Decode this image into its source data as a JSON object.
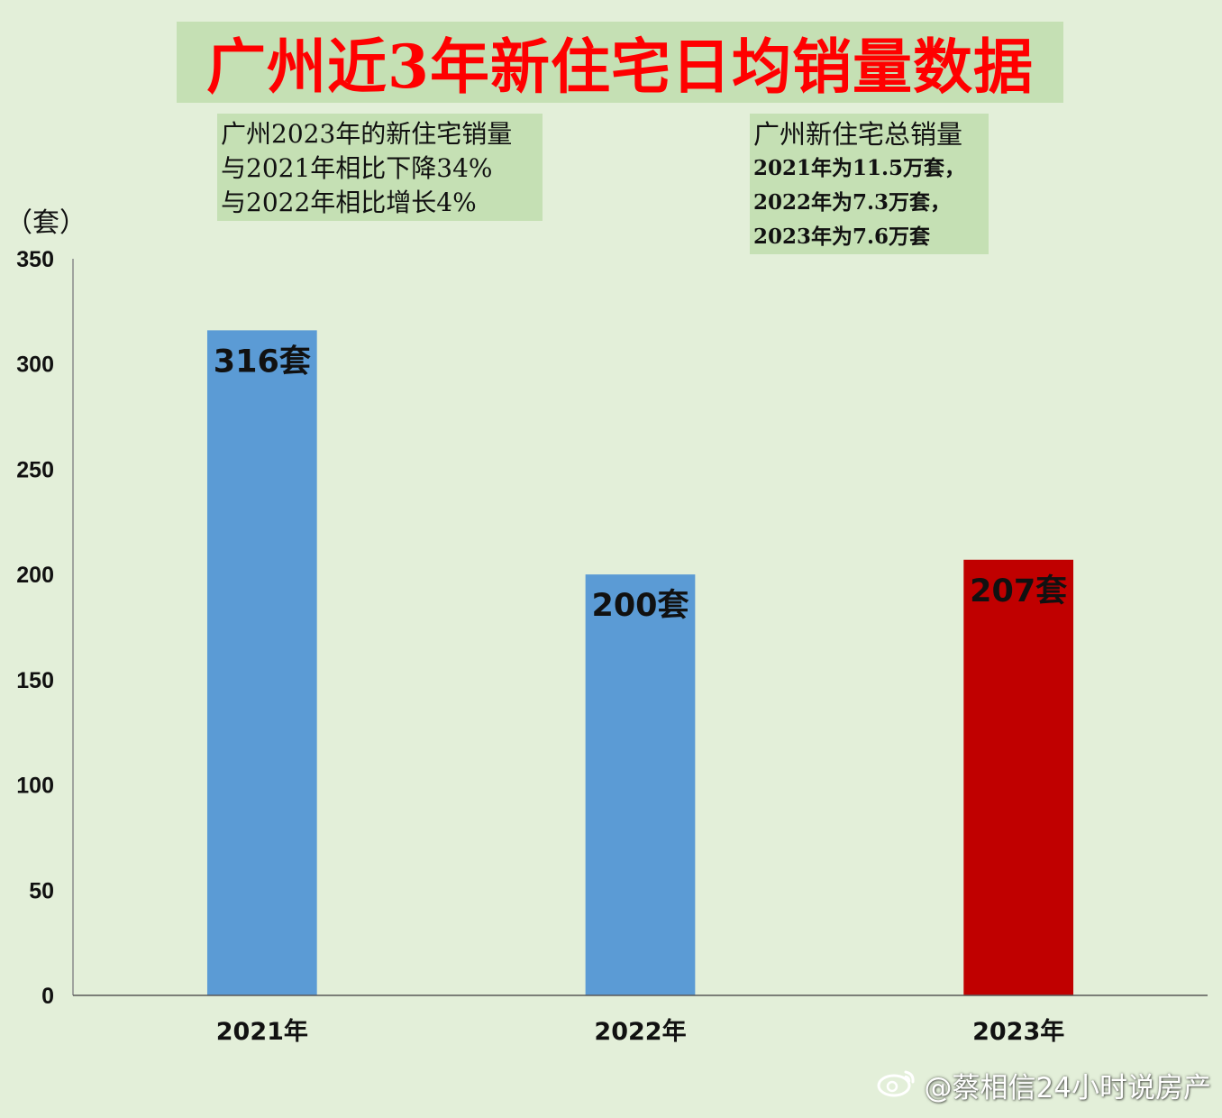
{
  "chart_data": {
    "type": "bar",
    "title": "广州近3年新住宅日均销量数据",
    "ylabel": "（套）",
    "ylim": [
      0,
      350
    ],
    "yticks": [
      0,
      50,
      100,
      150,
      200,
      250,
      300,
      350
    ],
    "categories": [
      "2021年",
      "2022年",
      "2023年"
    ],
    "values": [
      316,
      200,
      207
    ],
    "data_labels": [
      "316套",
      "200套",
      "207套"
    ],
    "colors": [
      "#5b9bd5",
      "#5b9bd5",
      "#c00000"
    ],
    "grid": false,
    "annotations": [
      [
        "广州2023年的新住宅销量",
        "与2021年相比下降34%",
        "与2022年相比增长4%"
      ],
      [
        "广州新住宅总销量",
        "2021年为11.5万套，",
        "2022年为7.3万套，",
        "2023年为7.6万套"
      ]
    ]
  },
  "watermark": {
    "icon": "weibo-icon",
    "text": "@蔡相信24小时说房产"
  }
}
